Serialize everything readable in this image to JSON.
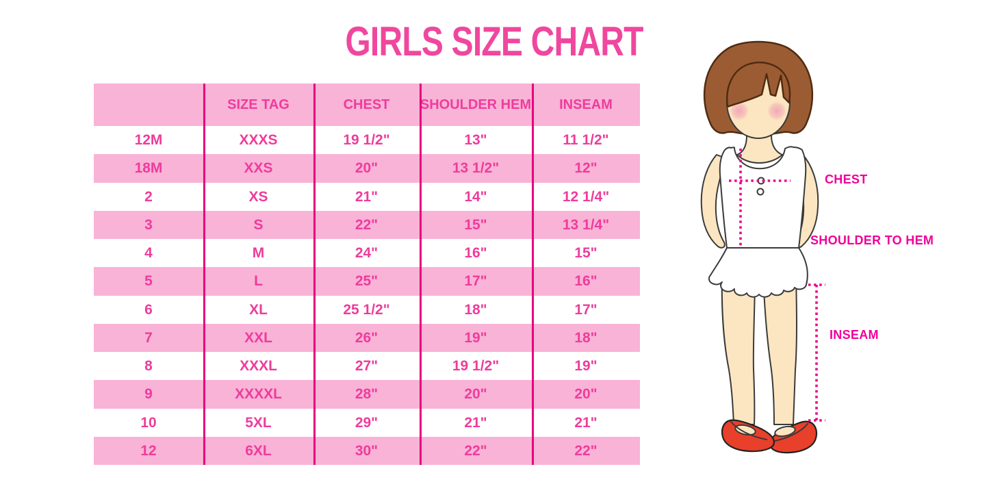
{
  "page": {
    "title": "GIRLS SIZE CHART"
  },
  "colors": {
    "title_pink": "#F0479E",
    "text_pink": "#EE3C9C",
    "row_pink": "#F9B3D7",
    "line_magenta": "#E6007E",
    "dot_magenta": "#EC008C",
    "label_magenta": "#F0009B",
    "hair_brown": "#9C5C33",
    "hair_outline": "#4E2C12",
    "skin": "#FBE6C1",
    "shoe_red": "#E8402A",
    "garment": "#FFFFFF"
  },
  "table": {
    "headers": [
      "",
      "SIZE TAG",
      "CHEST",
      "SHOULDER HEM",
      "INSEAM"
    ],
    "rows": [
      [
        "12M",
        "XXXS",
        "19 1/2\"",
        "13\"",
        "11 1/2\""
      ],
      [
        "18M",
        "XXS",
        "20\"",
        "13 1/2\"",
        "12\""
      ],
      [
        "2",
        "XS",
        "21\"",
        "14\"",
        "12 1/4\""
      ],
      [
        "3",
        "S",
        "22\"",
        "15\"",
        "13 1/4\""
      ],
      [
        "4",
        "M",
        "24\"",
        "16\"",
        "15\""
      ],
      [
        "5",
        "L",
        "25\"",
        "17\"",
        "16\""
      ],
      [
        "6",
        "XL",
        "25 1/2\"",
        "18\"",
        "17\""
      ],
      [
        "7",
        "XXL",
        "26\"",
        "19\"",
        "18\""
      ],
      [
        "8",
        "XXXL",
        "27\"",
        "19 1/2\"",
        "19\""
      ],
      [
        "9",
        "XXXXL",
        "28\"",
        "20\"",
        "20\""
      ],
      [
        "10",
        "5XL",
        "29\"",
        "21\"",
        "21\""
      ],
      [
        "12",
        "6XL",
        "30\"",
        "22\"",
        "22\""
      ]
    ]
  },
  "figure_labels": {
    "chest": "CHEST",
    "shoulder_to_hem": "SHOULDER TO HEM",
    "inseam": "INSEAM"
  },
  "chart_data": {
    "type": "table",
    "title": "GIRLS SIZE CHART",
    "columns": [
      "",
      "SIZE TAG",
      "CHEST",
      "SHOULDER HEM",
      "INSEAM"
    ],
    "rows": [
      [
        "12M",
        "XXXS",
        "19 1/2\"",
        "13\"",
        "11 1/2\""
      ],
      [
        "18M",
        "XXS",
        "20\"",
        "13 1/2\"",
        "12\""
      ],
      [
        "2",
        "XS",
        "21\"",
        "14\"",
        "12 1/4\""
      ],
      [
        "3",
        "S",
        "22\"",
        "15\"",
        "13 1/4\""
      ],
      [
        "4",
        "M",
        "24\"",
        "16\"",
        "15\""
      ],
      [
        "5",
        "L",
        "25\"",
        "17\"",
        "16\""
      ],
      [
        "6",
        "XL",
        "25 1/2\"",
        "18\"",
        "17\""
      ],
      [
        "7",
        "XXL",
        "26\"",
        "19\"",
        "18\""
      ],
      [
        "8",
        "XXXL",
        "27\"",
        "19 1/2\"",
        "19\""
      ],
      [
        "9",
        "XXXXL",
        "28\"",
        "20\"",
        "20\""
      ],
      [
        "10",
        "5XL",
        "29\"",
        "21\"",
        "21\""
      ],
      [
        "12",
        "6XL",
        "30\"",
        "22\"",
        "22\""
      ]
    ],
    "annotations": [
      "CHEST",
      "SHOULDER TO HEM",
      "INSEAM"
    ],
    "legend_position": "none",
    "grid": false
  }
}
